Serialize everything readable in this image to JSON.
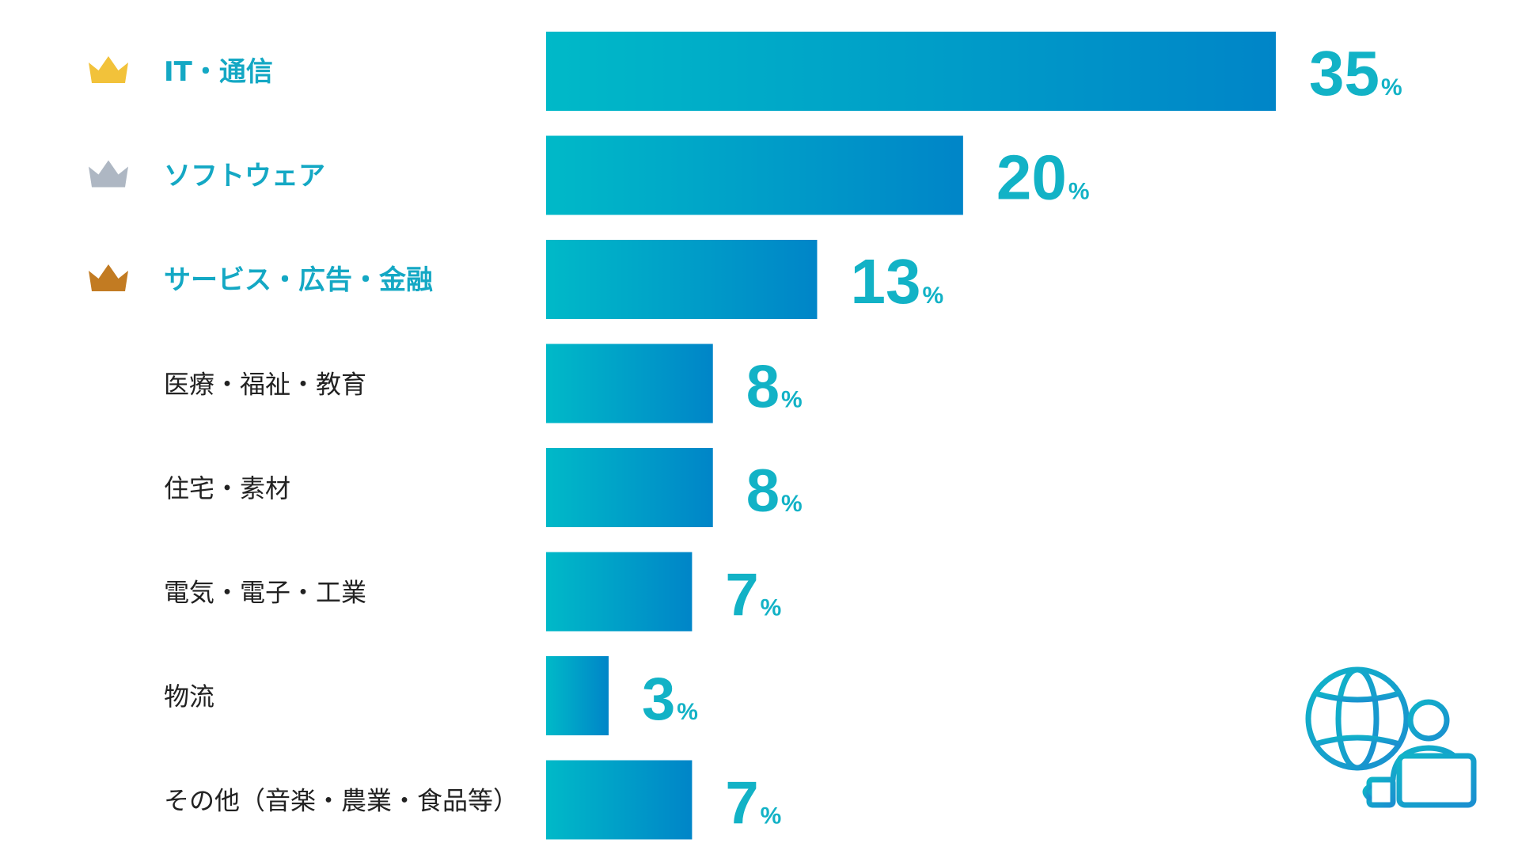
{
  "chart_data": {
    "type": "bar",
    "orientation": "horizontal",
    "categories": [
      "IT・通信",
      "ソフトウェア",
      "サービス・広告・金融",
      "医療・福祉・教育",
      "住宅・素材",
      "電気・電子・工業",
      "物流",
      "その他（音楽・農業・食品等）"
    ],
    "values": [
      35,
      20,
      13,
      8,
      8,
      7,
      3,
      7
    ],
    "value_suffix": "%",
    "xlim": [
      0,
      35
    ],
    "grid": false,
    "legend": "none",
    "ranks": [
      {
        "rank": 1,
        "icon": "gold-crown-icon",
        "color": "#f2c23a"
      },
      {
        "rank": 2,
        "icon": "silver-crown-icon",
        "color": "#aeb7c3"
      },
      {
        "rank": 3,
        "icon": "bronze-crown-icon",
        "color": "#c27b22"
      }
    ]
  },
  "colors": {
    "bar_gradient_start": "#00b9c8",
    "bar_gradient_end": "#0085c8",
    "value_text": "#12b2c6",
    "top_label": "#14a8c4",
    "label": "#222222",
    "illustration": "#18a3cf"
  },
  "illustration": "globe-remote-worker-icon"
}
